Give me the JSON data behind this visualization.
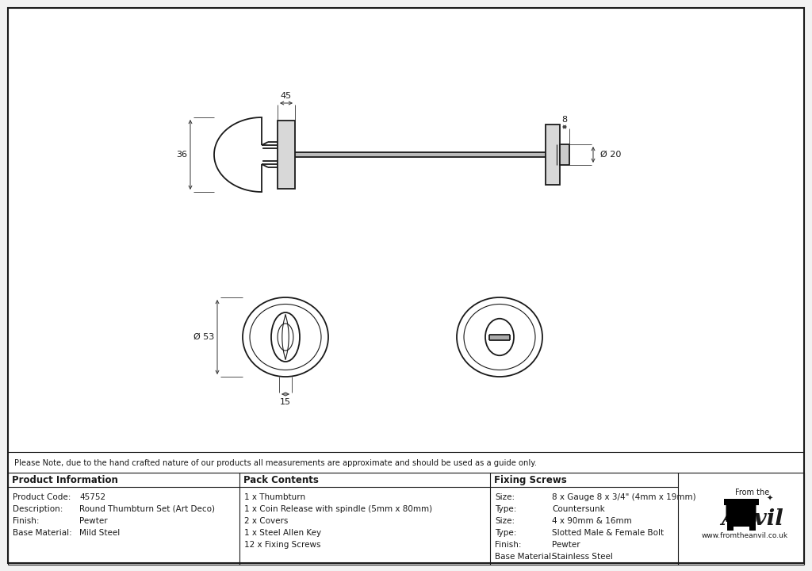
{
  "bg_color": "#f2f2f2",
  "drawing_bg": "#ffffff",
  "line_color": "#1a1a1a",
  "dim_color": "#333333",
  "note_text": "Please Note, due to the hand crafted nature of our products all measurements are approximate and should be used as a guide only.",
  "product_info_keys": [
    "Product Code:",
    "Description:",
    "Finish:",
    "Base Material:"
  ],
  "product_info_vals": [
    "45752",
    "Round Thumbturn Set (Art Deco)",
    "Pewter",
    "Mild Steel"
  ],
  "pack_contents": [
    "1 x Thumbturn",
    "1 x Coin Release with spindle (5mm x 80mm)",
    "2 x Covers",
    "1 x Steel Allen Key",
    "12 x Fixing Screws"
  ],
  "fixing_keys": [
    "Size:",
    "Type:",
    "Size:",
    "Type:",
    "Finish:",
    "Base Material:"
  ],
  "fixing_vals": [
    "8 x Gauge 8 x 3/4\" (4mm x 19mm)",
    "Countersunk",
    "4 x 90mm & 16mm",
    "Slotted Male & Female Bolt",
    "Pewter",
    "Stainless Steel"
  ],
  "dim_45": "45",
  "dim_8": "8",
  "dim_36": "36",
  "dim_20": "Ø 20",
  "dim_53": "Ø 53",
  "dim_15": "15"
}
